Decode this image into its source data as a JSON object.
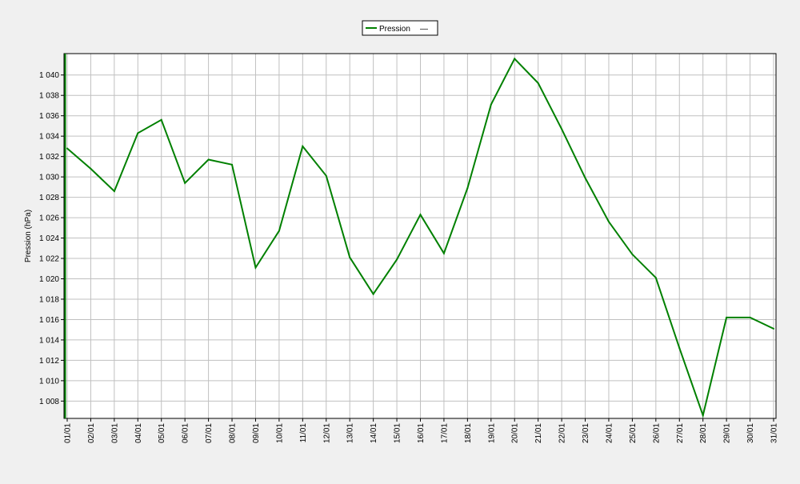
{
  "chart_data": {
    "type": "line",
    "title": "",
    "xlabel": "",
    "ylabel": "Pression (hPa)",
    "categories": [
      "01/01",
      "02/01",
      "03/01",
      "04/01",
      "05/01",
      "06/01",
      "07/01",
      "08/01",
      "09/01",
      "10/01",
      "11/01",
      "12/01",
      "13/01",
      "14/01",
      "15/01",
      "16/01",
      "17/01",
      "18/01",
      "19/01",
      "20/01",
      "21/01",
      "22/01",
      "23/01",
      "24/01",
      "25/01",
      "26/01",
      "27/01",
      "28/01",
      "29/01",
      "30/01",
      "31/01"
    ],
    "series": [
      {
        "name": "Pression",
        "color": "#008000",
        "values": [
          1032.8,
          1030.8,
          1028.6,
          1034.3,
          1035.6,
          1029.4,
          1031.7,
          1031.2,
          1021.1,
          1024.7,
          1033.0,
          1030.1,
          1022.1,
          1018.5,
          1021.9,
          1026.3,
          1022.5,
          1028.9,
          1037.1,
          1041.6,
          1039.2,
          1034.7,
          1029.9,
          1025.6,
          1022.4,
          1020.1,
          1013.2,
          1006.6,
          1016.2,
          1016.2,
          1015.1
        ]
      }
    ],
    "yticks": [
      "1 008",
      "1 010",
      "1 012",
      "1 014",
      "1 016",
      "1 018",
      "1 020",
      "1 022",
      "1 024",
      "1 026",
      "1 028",
      "1 030",
      "1 032",
      "1 034",
      "1 036",
      "1 038",
      "1 040"
    ],
    "ytick_values": [
      1008,
      1010,
      1012,
      1014,
      1016,
      1018,
      1020,
      1022,
      1024,
      1026,
      1028,
      1030,
      1032,
      1034,
      1036,
      1038,
      1040
    ],
    "ylim": [
      1006.3,
      1042.1
    ],
    "grid": true,
    "legend": {
      "position": "top-center",
      "label": "Pression",
      "extra_symbol": "—"
    }
  }
}
